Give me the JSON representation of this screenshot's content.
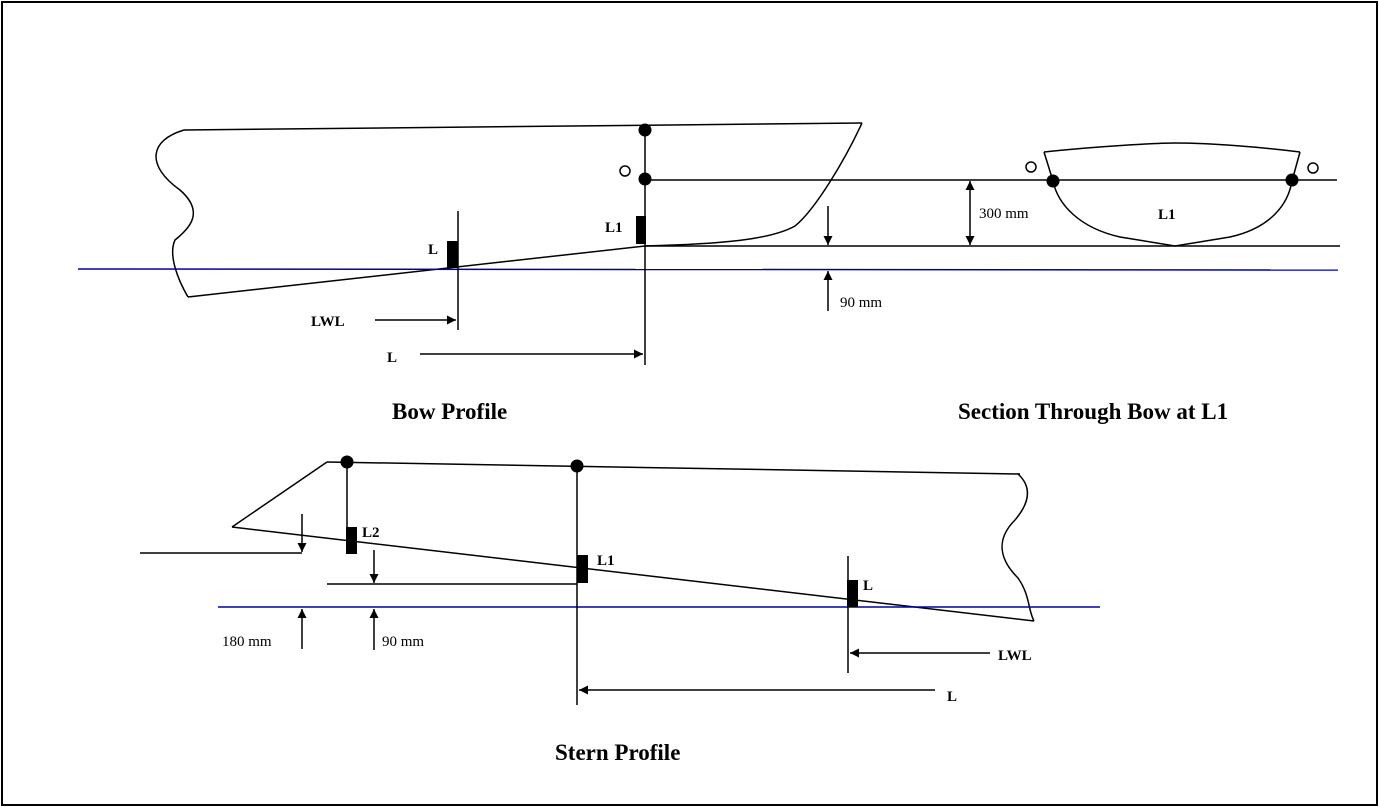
{
  "bow_profile": {
    "caption": "Bow Profile",
    "mark_L": "L",
    "mark_L1": "L1",
    "lwl_label": "LWL",
    "length_label": "L",
    "dim_300": "300 mm",
    "dim_90": "90 mm"
  },
  "section": {
    "caption": "Section Through Bow at L1",
    "mark_L1": "L1"
  },
  "stern_profile": {
    "caption": "Stern Profile",
    "mark_L2": "L2",
    "mark_L1": "L1",
    "mark_L": "L",
    "lwl_label": "LWL",
    "length_label": "L",
    "dim_180": "180 mm",
    "dim_90": "90 mm"
  },
  "colors": {
    "waterline": "#0000aa",
    "outline": "#000000",
    "border": "#000000"
  }
}
